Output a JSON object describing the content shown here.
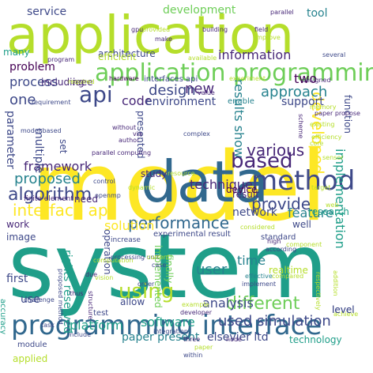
{
  "palette": {
    "lime": "#b5de2b",
    "yellow": "#fde725",
    "green": "#6ece58",
    "teal": "#1f9e89",
    "cyan": "#26828e",
    "blue": "#31688e",
    "indigo": "#3e4989",
    "purple": "#482878",
    "dark": "#440154",
    "mint": "#35b779"
  },
  "words": [
    {
      "text": "model"
    },
    {
      "text": "system"
    },
    {
      "text": "application"
    },
    {
      "text": "data"
    },
    {
      "text": "programming interface"
    },
    {
      "text": "application programming"
    },
    {
      "text": "method"
    },
    {
      "text": "based"
    },
    {
      "text": "using"
    },
    {
      "text": "api"
    },
    {
      "text": "framework"
    },
    {
      "text": "algorithm"
    },
    {
      "text": "provide"
    },
    {
      "text": "interface api"
    },
    {
      "text": "different"
    },
    {
      "text": "implementation"
    },
    {
      "text": "information"
    },
    {
      "text": "developed"
    },
    {
      "text": "performance"
    },
    {
      "text": "analysis"
    },
    {
      "text": "used simulation"
    },
    {
      "text": "software"
    },
    {
      "text": "platform"
    },
    {
      "text": "user"
    },
    {
      "text": "technique"
    },
    {
      "text": "feature"
    },
    {
      "text": "network"
    },
    {
      "text": "result"
    },
    {
      "text": "various"
    },
    {
      "text": "approach"
    },
    {
      "text": "results show"
    },
    {
      "text": "design"
    },
    {
      "text": "new"
    },
    {
      "text": "code"
    },
    {
      "text": "environment"
    },
    {
      "text": "support"
    },
    {
      "text": "process"
    },
    {
      "text": "problem"
    },
    {
      "text": "architecture"
    },
    {
      "text": "proposed"
    },
    {
      "text": "parameter"
    },
    {
      "text": "multiple"
    },
    {
      "text": "one"
    },
    {
      "text": "two"
    },
    {
      "text": "time"
    },
    {
      "text": "solution"
    },
    {
      "text": "service"
    },
    {
      "text": "development"
    },
    {
      "text": "tool"
    },
    {
      "text": "efficient"
    },
    {
      "text": "elsevier ltd"
    },
    {
      "text": "paper present"
    },
    {
      "text": "technology"
    },
    {
      "text": "level"
    },
    {
      "text": "research"
    },
    {
      "text": "well"
    },
    {
      "text": "work"
    },
    {
      "text": "image"
    },
    {
      "text": "first"
    },
    {
      "text": "use"
    },
    {
      "text": "operation"
    },
    {
      "text": "finally"
    },
    {
      "text": "allow"
    },
    {
      "text": "device"
    },
    {
      "text": "study"
    },
    {
      "text": "realtime"
    },
    {
      "text": "set"
    },
    {
      "text": "need"
    },
    {
      "text": "presented"
    },
    {
      "text": "function"
    },
    {
      "text": "rights reserved"
    },
    {
      "text": "including"
    },
    {
      "text": "ieee"
    },
    {
      "text": "many"
    },
    {
      "text": "applied"
    },
    {
      "text": "accuracy"
    },
    {
      "text": "implemented"
    },
    {
      "text": "module"
    },
    {
      "text": "test"
    },
    {
      "text": "interfaces api"
    },
    {
      "text": "hardware"
    },
    {
      "text": "standard"
    },
    {
      "text": "sensor"
    },
    {
      "text": "memory"
    },
    {
      "text": "experimental result"
    },
    {
      "text": "finite element"
    },
    {
      "text": "increase"
    },
    {
      "text": "parallel computing"
    },
    {
      "text": "author"
    },
    {
      "text": "without"
    },
    {
      "text": "via"
    },
    {
      "text": "complex"
    },
    {
      "text": "parallel"
    },
    {
      "text": "field"
    },
    {
      "text": "improve"
    },
    {
      "text": "building"
    },
    {
      "text": "provided"
    },
    {
      "text": "gpu"
    },
    {
      "text": "make"
    },
    {
      "text": "several"
    },
    {
      "text": "designed"
    },
    {
      "text": "available"
    },
    {
      "text": "efficiency"
    },
    {
      "text": "core"
    },
    {
      "text": "existing"
    },
    {
      "text": "paper propose"
    },
    {
      "text": "computation"
    },
    {
      "text": "processing unit"
    },
    {
      "text": "order"
    },
    {
      "text": "current"
    },
    {
      "text": "high"
    },
    {
      "text": "according"
    },
    {
      "text": "considered"
    },
    {
      "text": "target"
    },
    {
      "text": "control"
    },
    {
      "text": "openmp"
    },
    {
      "text": "dynamic"
    },
    {
      "text": "resource"
    },
    {
      "text": "program"
    },
    {
      "text": "required"
    },
    {
      "text": "requirement"
    },
    {
      "text": "value"
    },
    {
      "text": "example"
    },
    {
      "text": "developer"
    },
    {
      "text": "compared"
    },
    {
      "text": "addition"
    },
    {
      "text": "achieve"
    },
    {
      "text": "respectively"
    },
    {
      "text": "effective"
    },
    {
      "text": "implement"
    },
    {
      "text": "integration"
    },
    {
      "text": "within"
    },
    {
      "text": "three"
    },
    {
      "text": "paper"
    },
    {
      "text": "node"
    },
    {
      "text": "include"
    },
    {
      "text": "task"
    },
    {
      "text": "structure"
    },
    {
      "text": "thus"
    },
    {
      "text": "challenge"
    },
    {
      "text": "due"
    },
    {
      "text": "case"
    },
    {
      "text": "experiment"
    },
    {
      "text": "scheme"
    },
    {
      "text": "component"
    },
    {
      "text": "proposed method"
    },
    {
      "text": "enable"
    },
    {
      "text": "vision"
    },
    {
      "text": "web"
    },
    {
      "text": "model based"
    },
    {
      "text": "level"
    }
  ]
}
